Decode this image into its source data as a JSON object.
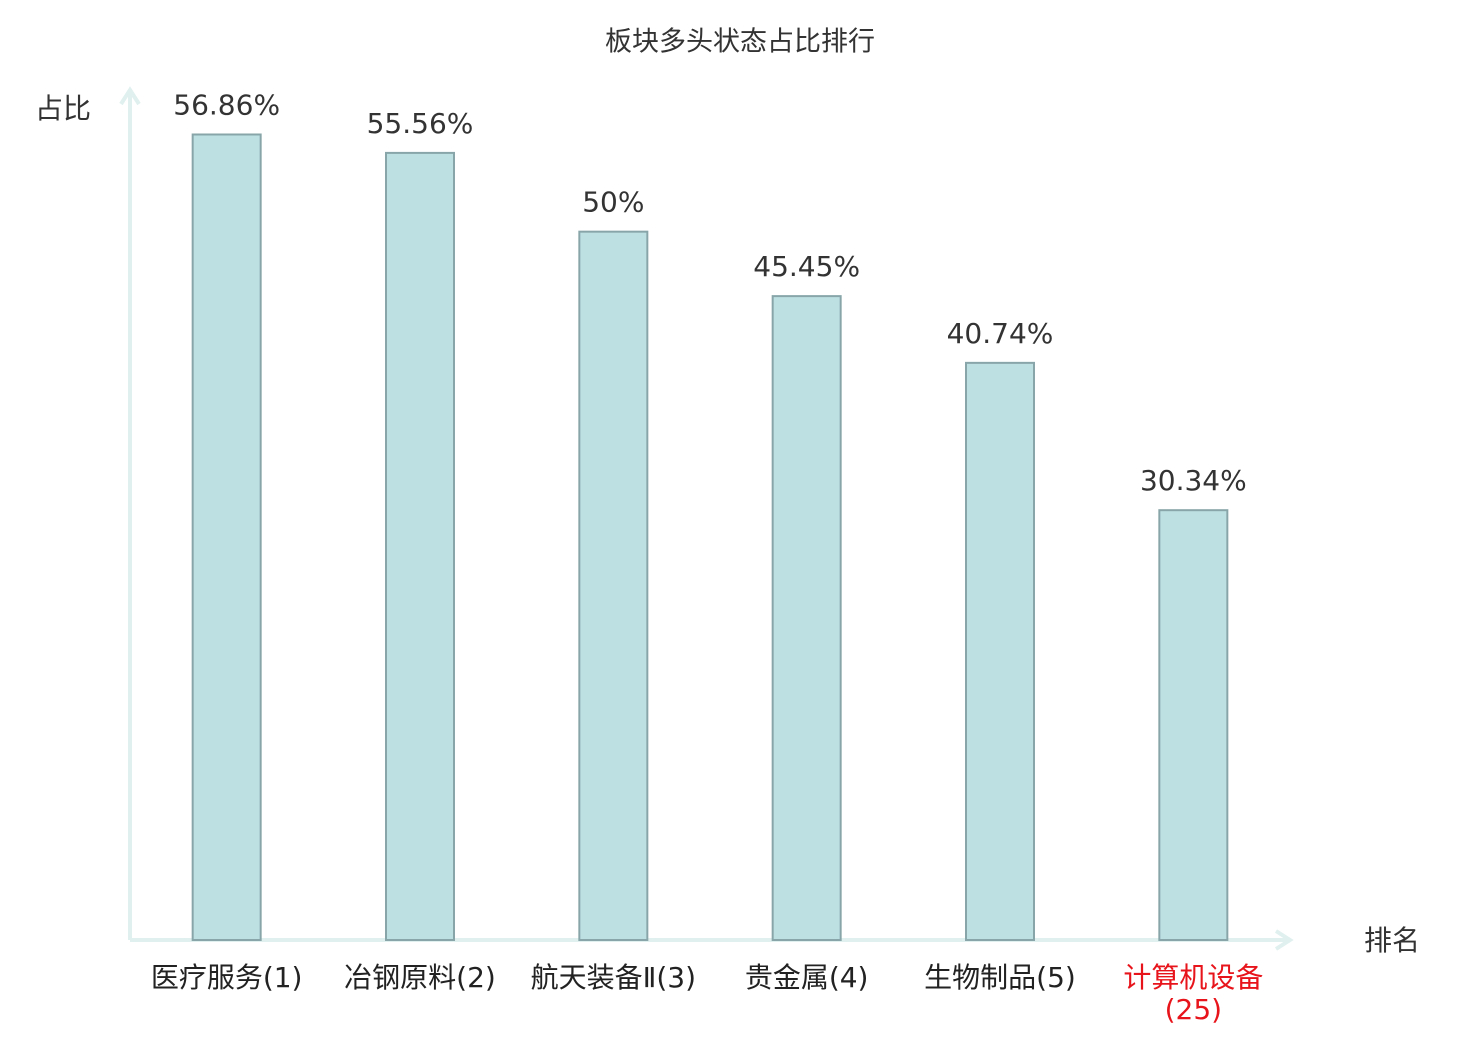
{
  "chart_data": {
    "type": "bar",
    "title": "板块多头状态占比排行",
    "y_label": "占比",
    "x_label": "排名",
    "categories": [
      "医疗服务(1)",
      "冶钢原料(2)",
      "航天装备Ⅱ(3)",
      "贵金属(4)",
      "生物制品(5)",
      "计算机设备(25)"
    ],
    "category_colors": [
      "#222222",
      "#222222",
      "#222222",
      "#222222",
      "#222222",
      "#e8141b"
    ],
    "values": [
      56.86,
      55.56,
      50,
      45.45,
      40.74,
      30.34
    ],
    "value_labels": [
      "56.86%",
      "55.56%",
      "50%",
      "45.45%",
      "40.74%",
      "30.34%"
    ],
    "color": "#bde0e3",
    "edge_color": "#88a6a9",
    "axis_color": "#dff0ee",
    "ylim": [
      0,
      60
    ]
  }
}
